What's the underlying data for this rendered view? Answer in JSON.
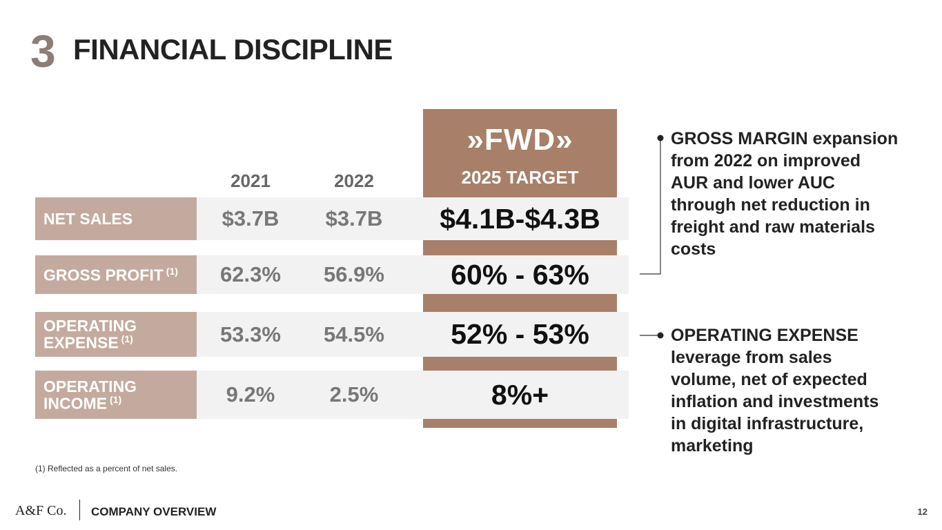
{
  "header": {
    "number": "3",
    "title": "FINANCIAL DISCIPLINE"
  },
  "table": {
    "columns": [
      "2021",
      "2022"
    ],
    "target": {
      "logo": "»FWD»",
      "label": "2025 TARGET"
    },
    "rows": [
      {
        "label": "NET SALES",
        "values": [
          "$3.7B",
          "$3.7B"
        ],
        "target": "$4.1B-$4.3B"
      },
      {
        "label": "GROSS PROFIT",
        "note": "(1)",
        "values": [
          "62.3%",
          "56.9%"
        ],
        "target": "60% - 63%"
      },
      {
        "label": "OPERATING EXPENSE",
        "note": "(1)",
        "values": [
          "53.3%",
          "54.5%"
        ],
        "target": "52% - 53%"
      },
      {
        "label": "OPERATING INCOME",
        "note": "(1)",
        "values": [
          "9.2%",
          "2.5%"
        ],
        "target": "8%+"
      }
    ]
  },
  "footnote": "(1) Reflected as a percent of net sales.",
  "callouts": [
    {
      "heading": "GROSS MARGIN",
      "body": "expansion from 2022 on improved AUR and lower AUC through net reduction in freight and raw materials costs"
    },
    {
      "heading": "OPERATING EXPENSE",
      "body": "leverage from sales volume, net of expected inflation and investments in digital infrastructure, marketing"
    }
  ],
  "footer": {
    "brand": "A&F Co.",
    "section": "COMPANY OVERVIEW",
    "page": "12"
  }
}
